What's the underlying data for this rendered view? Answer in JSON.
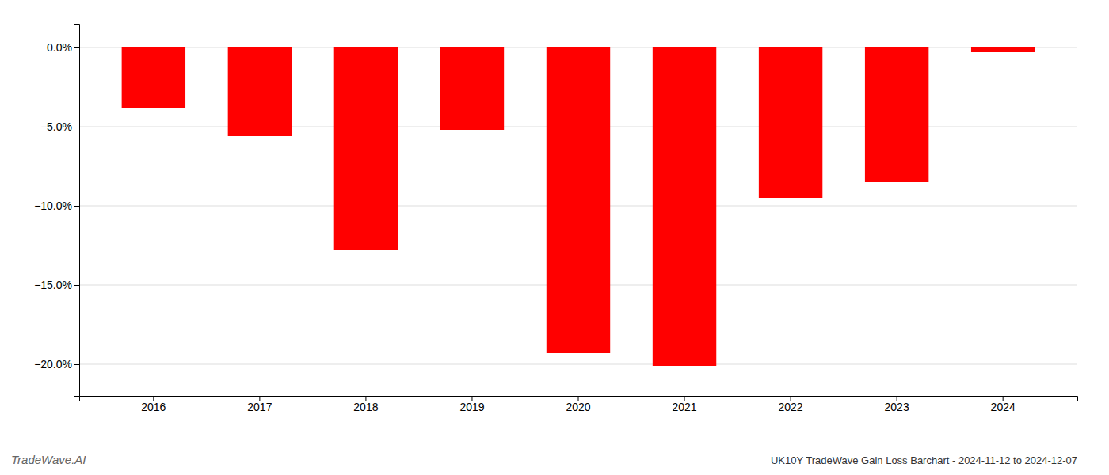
{
  "chart_data": {
    "type": "bar",
    "title": "UK10Y TradeWave Gain Loss Barchart - 2024-11-12 to 2024-12-07",
    "annotations": [
      "TradeWave.AI"
    ],
    "categories": [
      "2016",
      "2017",
      "2018",
      "2019",
      "2020",
      "2021",
      "2022",
      "2023",
      "2024"
    ],
    "values": [
      -3.8,
      -5.6,
      -12.8,
      -5.2,
      -19.3,
      -20.1,
      -9.5,
      -8.5,
      -0.3
    ],
    "color": "#ff0000",
    "ylim": [
      -22.0,
      1.5
    ],
    "yticks": [
      {
        "value": 0.0,
        "label": "0.0%"
      },
      {
        "value": -5.0,
        "label": "−5.0%"
      },
      {
        "value": -10.0,
        "label": "−10.0%"
      },
      {
        "value": -15.0,
        "label": "−15.0%"
      },
      {
        "value": -20.0,
        "label": "−20.0%"
      }
    ],
    "grid": true
  }
}
